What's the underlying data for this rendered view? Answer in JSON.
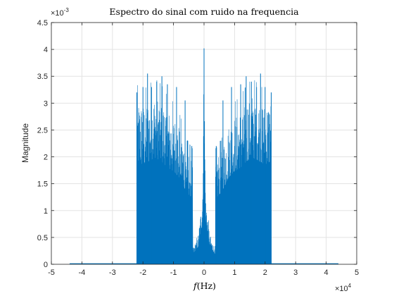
{
  "colors": {
    "series": "#0072BD",
    "grid": "#e3e3e3",
    "axis": "#262626",
    "background": "#ffffff"
  },
  "chart_data": {
    "type": "line",
    "title": "Espectro do sinal com ruido na frequencia",
    "xlabel_italic": "f",
    "xlabel_rest": "(Hz)",
    "ylabel": "Magnitude",
    "x_multiplier": "×10",
    "x_multiplier_exp": "4",
    "y_multiplier": "×10",
    "y_multiplier_exp": "-3",
    "xlim": [
      -5,
      5
    ],
    "ylim": [
      0,
      4.5
    ],
    "grid": true,
    "x_ticks": [
      -5,
      -4,
      -3,
      -2,
      -1,
      0,
      1,
      2,
      3,
      4,
      5
    ],
    "x_tick_labels": [
      "-5",
      "-4",
      "-3",
      "-2",
      "-1",
      "0",
      "1",
      "2",
      "3",
      "4",
      "5"
    ],
    "y_ticks": [
      0,
      0.5,
      1,
      1.5,
      2,
      2.5,
      3,
      3.5,
      4,
      4.5
    ],
    "y_tick_labels": [
      "0",
      "0.5",
      "1",
      "1.5",
      "2",
      "2.5",
      "3",
      "3.5",
      "4",
      "4.5"
    ],
    "series": [
      {
        "x_range": [
          -4.4,
          4.4
        ],
        "envelope": [
          [
            -4.4,
            0.001
          ],
          [
            -2.2,
            0.001
          ],
          [
            -2.2,
            3.1
          ],
          [
            -2.0,
            3.0
          ],
          [
            -1.8,
            3.1
          ],
          [
            -1.6,
            3.2
          ],
          [
            -1.4,
            3.1
          ],
          [
            -1.2,
            2.9
          ],
          [
            -1.0,
            2.8
          ],
          [
            -0.8,
            2.6
          ],
          [
            -0.6,
            2.2
          ],
          [
            -0.4,
            2.0
          ],
          [
            -0.37,
            2.0
          ],
          [
            -0.37,
            0.3
          ],
          [
            -0.2,
            0.5
          ],
          [
            -0.1,
            1.0
          ],
          [
            -0.05,
            1.3
          ],
          [
            0.0,
            4.0
          ],
          [
            0.05,
            1.3
          ],
          [
            0.1,
            1.0
          ],
          [
            0.2,
            0.5
          ],
          [
            0.37,
            0.3
          ],
          [
            0.37,
            2.0
          ],
          [
            0.4,
            2.0
          ],
          [
            0.6,
            2.2
          ],
          [
            0.8,
            2.6
          ],
          [
            1.0,
            2.8
          ],
          [
            1.2,
            2.9
          ],
          [
            1.4,
            3.1
          ],
          [
            1.6,
            3.2
          ],
          [
            1.8,
            3.1
          ],
          [
            2.0,
            3.0
          ],
          [
            2.2,
            3.1
          ],
          [
            2.2,
            0.001
          ],
          [
            4.4,
            0.001
          ]
        ],
        "peaks": [
          [
            -2.2,
            3.2
          ],
          [
            -2.0,
            3.3
          ],
          [
            -1.85,
            3.55
          ],
          [
            -1.72,
            3.3
          ],
          [
            -1.55,
            3.4
          ],
          [
            -1.38,
            3.5
          ],
          [
            -1.2,
            3.35
          ],
          [
            -0.9,
            3.3
          ],
          [
            -0.62,
            3.05
          ],
          [
            -0.55,
            2.3
          ],
          [
            -0.4,
            2.2
          ],
          [
            0.0,
            4.02
          ],
          [
            0.4,
            2.2
          ],
          [
            0.55,
            2.3
          ],
          [
            0.62,
            3.05
          ],
          [
            0.9,
            3.3
          ],
          [
            1.2,
            3.35
          ],
          [
            1.38,
            3.5
          ],
          [
            1.55,
            3.4
          ],
          [
            1.72,
            3.3
          ],
          [
            1.85,
            3.55
          ],
          [
            2.0,
            3.3
          ],
          [
            2.2,
            3.2
          ]
        ]
      }
    ]
  }
}
